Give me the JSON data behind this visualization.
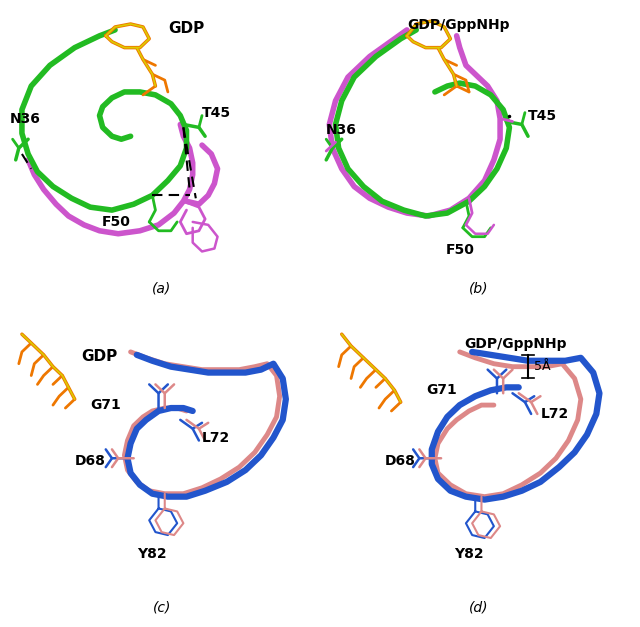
{
  "figure_size": [
    6.4,
    6.27
  ],
  "dpi": 100,
  "colors": {
    "green": "#22bb22",
    "magenta": "#cc55cc",
    "orange": "#ee7700",
    "yellow": "#ddcc00",
    "blue": "#2255cc",
    "salmon": "#dd8888"
  },
  "panel_labels": [
    "(a)",
    "(b)",
    "(c)",
    "(d)"
  ]
}
